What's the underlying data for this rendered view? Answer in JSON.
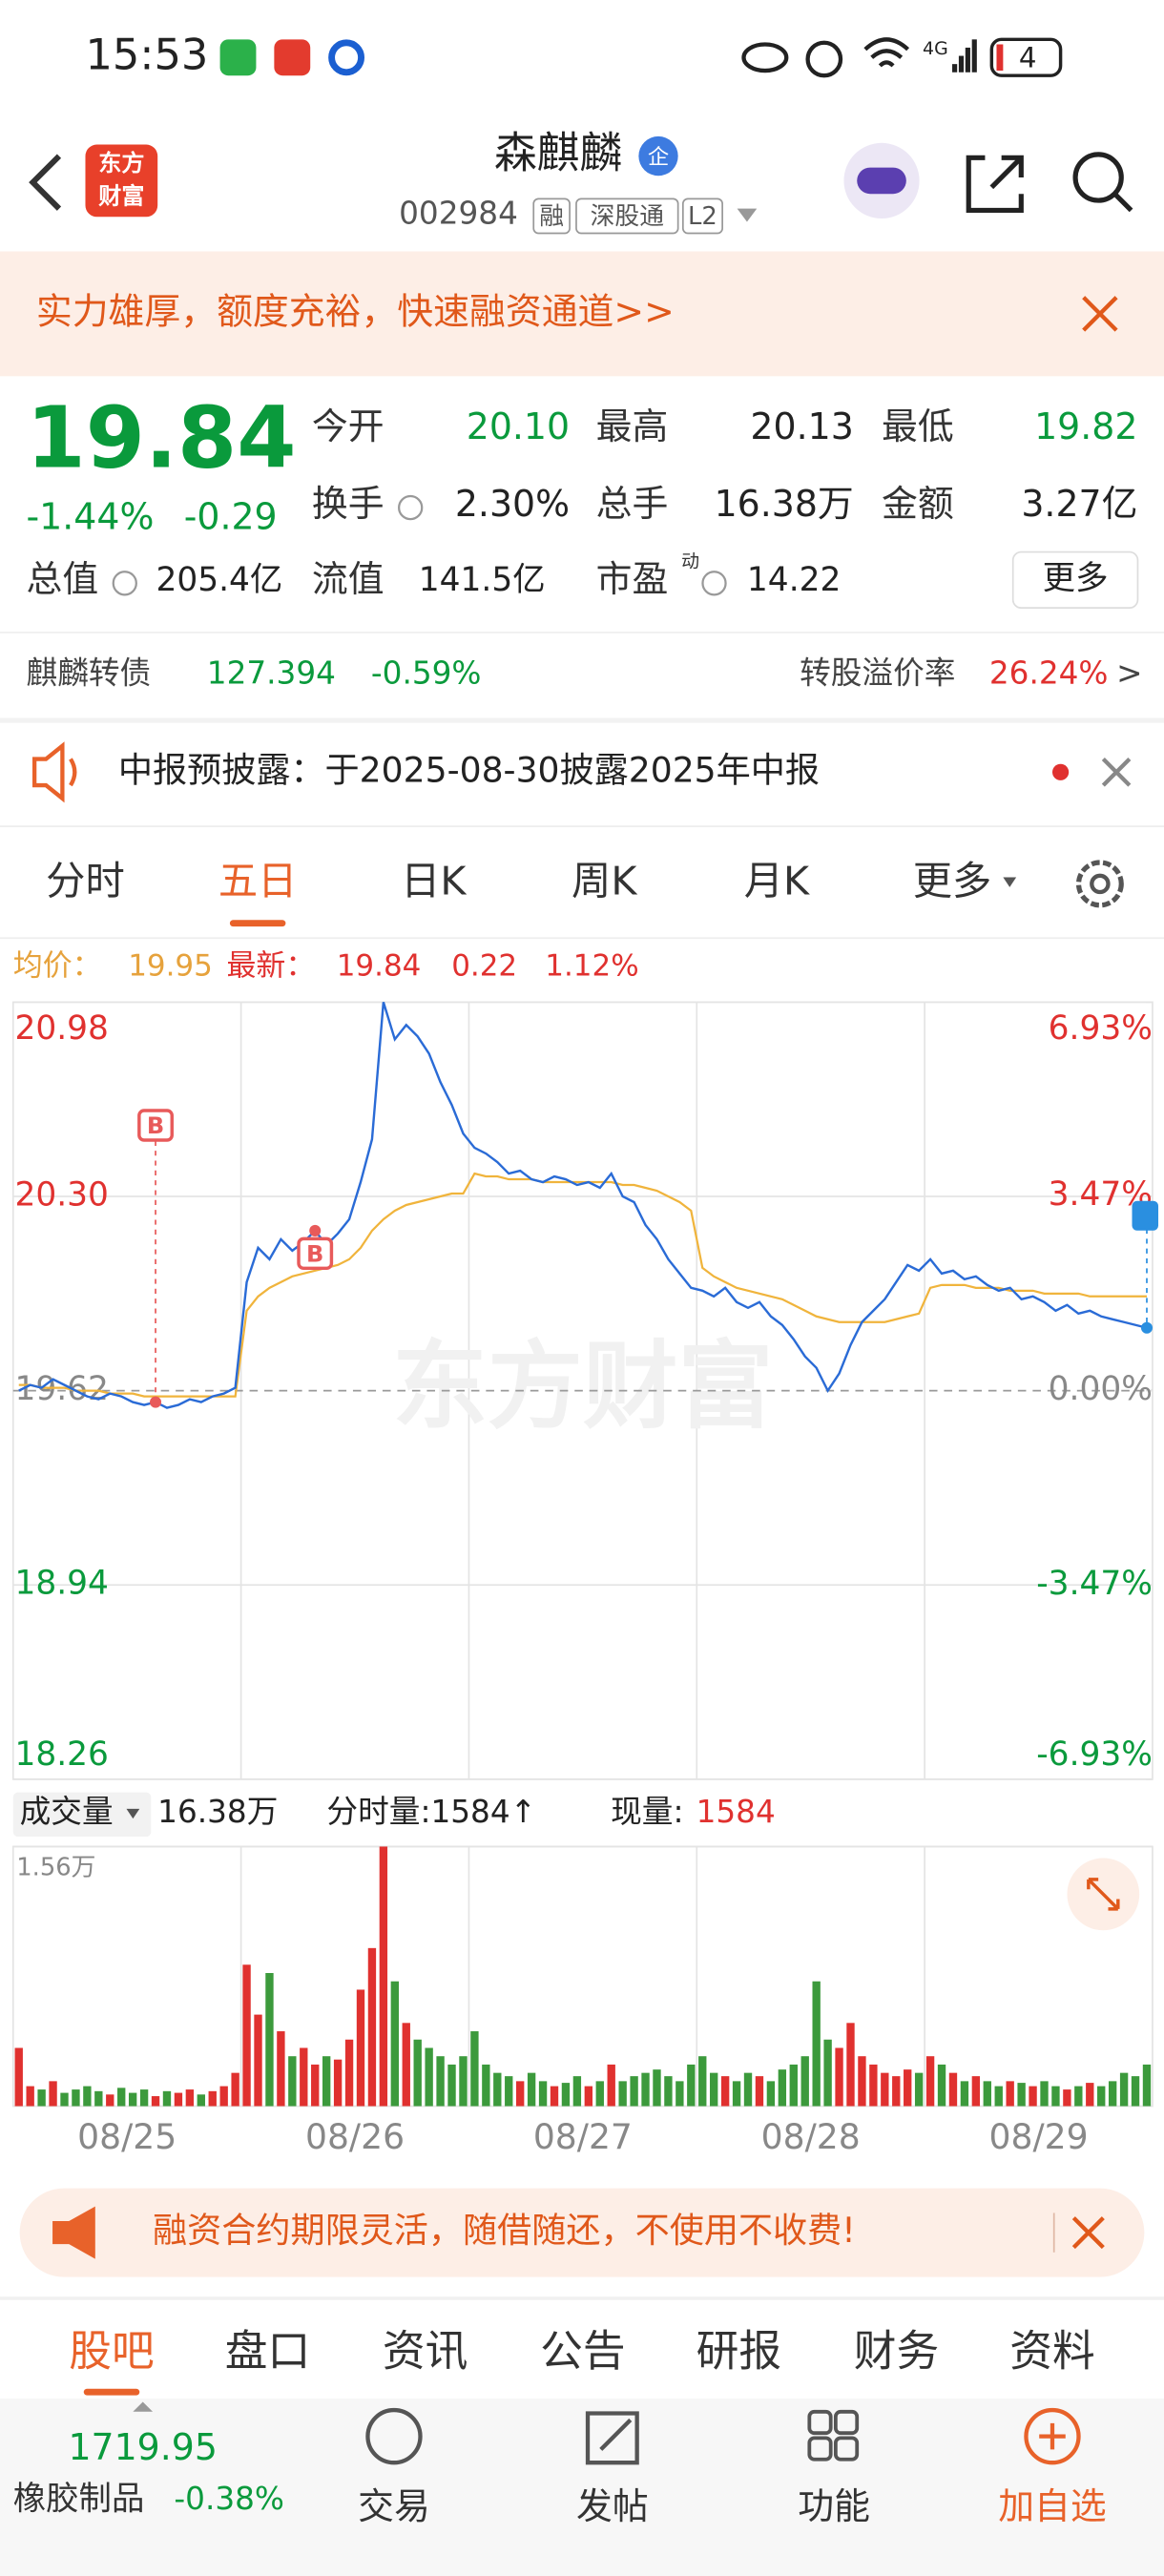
{
  "status_bar": {
    "time": "15:53",
    "network": "4G",
    "battery": "4"
  },
  "header": {
    "logo": [
      "东方",
      "财富"
    ],
    "title": "森麒麟",
    "badge": "企",
    "code": "002984",
    "tags": [
      "融",
      "深股通",
      "L2"
    ]
  },
  "banner": {
    "text": "实力雄厚，额度充裕，快速融资通道>>"
  },
  "quote": {
    "price": "19.84",
    "change_percent": "-1.44%",
    "change": "-0.29",
    "more": "更多",
    "fields": [
      {
        "label": "今开",
        "value": "20.10",
        "color": "#0a9a3c"
      },
      {
        "label": "最高",
        "value": "20.13"
      },
      {
        "label": "最低",
        "value": "19.82",
        "color": "#0a9a3c"
      },
      {
        "label": "换手",
        "value": "2.30%"
      },
      {
        "label": "总手",
        "value": "16.38万"
      },
      {
        "label": "金额",
        "value": "3.27亿"
      },
      {
        "label": "总值",
        "value": "205.4亿"
      },
      {
        "label": "流值",
        "value": "141.5亿"
      },
      {
        "label": "市盈",
        "sup": "动",
        "value": "14.22"
      }
    ]
  },
  "bond": {
    "name": "麒麟转债",
    "price": "127.394",
    "change": "-0.59%",
    "premium_label": "转股溢价率",
    "premium": "26.24%",
    "arrow": ">"
  },
  "notice": {
    "text": "中报预披露：于2025-08-30披露2025年中报"
  },
  "period_tabs": {
    "items": [
      "分时",
      "五日",
      "日K",
      "周K",
      "月K",
      "更多"
    ],
    "active": 1
  },
  "chart_info": {
    "avg_label": "均价：",
    "avg": "19.95",
    "latest_label": "最新：",
    "latest": "19.84",
    "change": "0.22",
    "change_percent": "1.12%"
  },
  "chart_data": [
    {
      "type": "line",
      "ylim": [
        18.26,
        20.98
      ],
      "yticks": [
        20.98,
        {
          "value": 20.3,
          "label": "20.30"
        },
        19.62,
        18.94,
        18.26
      ],
      "y2lim": [
        -6.93,
        6.93
      ],
      "y2ticks": [
        {
          "value": 6.93,
          "label": "6.93%"
        },
        {
          "value": 3.47,
          "label": "3.47%"
        },
        {
          "value": 0,
          "label": "0.00%"
        },
        {
          "value": -3.47,
          "label": "-3.47%"
        },
        {
          "value": -6.93,
          "label": "-6.93%"
        }
      ],
      "up_color": "#e0312f",
      "down_color": "#0a9a3c",
      "flat_color": "#888888",
      "series": [
        {
          "color": "#2a6bd6",
          "values": [
            19.62,
            19.64,
            19.63,
            19.66,
            19.64,
            19.62,
            19.6,
            19.59,
            19.61,
            19.6,
            19.58,
            19.57,
            19.58,
            19.56,
            19.57,
            19.59,
            19.58,
            19.6,
            19.61,
            19.63,
            20.0,
            20.12,
            20.08,
            20.15,
            20.11,
            20.14,
            20.18,
            20.13,
            20.17,
            20.22,
            20.35,
            20.5,
            20.98,
            20.85,
            20.9,
            20.86,
            20.8,
            20.7,
            20.62,
            20.52,
            20.47,
            20.45,
            20.42,
            20.38,
            20.39,
            20.36,
            20.35,
            20.37,
            20.36,
            20.34,
            20.35,
            20.33,
            20.38,
            20.3,
            20.28,
            20.2,
            20.15,
            20.08,
            20.03,
            19.98,
            19.97,
            19.95,
            19.98,
            19.93,
            19.91,
            19.93,
            19.88,
            19.85,
            19.8,
            19.74,
            19.7,
            19.62,
            19.68,
            19.78,
            19.86,
            19.9,
            19.94,
            20.0,
            20.06,
            20.04,
            20.08,
            20.03,
            20.04,
            20.01,
            20.02,
            19.99,
            19.97,
            19.98,
            19.94,
            19.95,
            19.93,
            19.9,
            19.92,
            19.89,
            19.9,
            19.88,
            19.87,
            19.86,
            19.85,
            19.84
          ]
        },
        {
          "color": "#f0b43c",
          "values": [
            19.64,
            19.64,
            19.63,
            19.63,
            19.63,
            19.62,
            19.62,
            19.62,
            19.61,
            19.61,
            19.61,
            19.6,
            19.6,
            19.6,
            19.6,
            19.6,
            19.6,
            19.6,
            19.6,
            19.6,
            19.9,
            19.95,
            19.98,
            20.0,
            20.02,
            20.03,
            20.04,
            20.05,
            20.06,
            20.08,
            20.12,
            20.18,
            20.22,
            20.25,
            20.27,
            20.28,
            20.29,
            20.3,
            20.31,
            20.31,
            20.38,
            20.37,
            20.37,
            20.36,
            20.36,
            20.36,
            20.35,
            20.35,
            20.35,
            20.35,
            20.35,
            20.35,
            20.35,
            20.34,
            20.34,
            20.33,
            20.32,
            20.3,
            20.28,
            20.25,
            20.05,
            20.02,
            20.0,
            19.98,
            19.97,
            19.96,
            19.95,
            19.94,
            19.92,
            19.9,
            19.88,
            19.87,
            19.86,
            19.86,
            19.86,
            19.86,
            19.86,
            19.87,
            19.88,
            19.89,
            19.98,
            19.99,
            19.99,
            19.99,
            19.98,
            19.98,
            19.98,
            19.97,
            19.97,
            19.97,
            19.96,
            19.96,
            19.96,
            19.96,
            19.95,
            19.95,
            19.95,
            19.95,
            19.95,
            19.95
          ]
        }
      ]
    },
    {
      "type": "bar",
      "ylim": [
        0,
        1.56
      ],
      "yticks": [
        {
          "value": 1.56,
          "label": "1.56万"
        }
      ],
      "day_labels": [
        "08/25",
        "08/26",
        "08/27",
        "08/28",
        "08/29"
      ],
      "up_color": "#e0312f",
      "down_color": "#3c9a3c",
      "values": [
        0.35,
        0.12,
        0.1,
        0.15,
        0.08,
        0.1,
        0.12,
        0.09,
        0.07,
        0.11,
        0.08,
        0.1,
        0.06,
        0.09,
        0.08,
        0.1,
        0.07,
        0.09,
        0.12,
        0.2,
        0.85,
        0.55,
        0.8,
        0.45,
        0.3,
        0.35,
        0.25,
        0.3,
        0.28,
        0.4,
        0.7,
        0.95,
        1.56,
        0.75,
        0.5,
        0.4,
        0.35,
        0.3,
        0.25,
        0.3,
        0.45,
        0.25,
        0.2,
        0.18,
        0.15,
        0.2,
        0.15,
        0.12,
        0.14,
        0.18,
        0.12,
        0.15,
        0.25,
        0.15,
        0.18,
        0.2,
        0.22,
        0.18,
        0.15,
        0.25,
        0.3,
        0.2,
        0.18,
        0.15,
        0.2,
        0.18,
        0.15,
        0.22,
        0.25,
        0.3,
        0.75,
        0.4,
        0.35,
        0.5,
        0.3,
        0.25,
        0.2,
        0.18,
        0.22,
        0.2,
        0.3,
        0.25,
        0.2,
        0.15,
        0.18,
        0.15,
        0.12,
        0.15,
        0.14,
        0.12,
        0.15,
        0.12,
        0.1,
        0.12,
        0.14,
        0.12,
        0.15,
        0.2,
        0.18,
        0.25
      ]
    }
  ],
  "volume_info": {
    "label": "成交量",
    "total": "16.38万",
    "tick_volume": "分时量:1584↑",
    "current_label": "现量:",
    "current": "1584"
  },
  "watermark": "东方财富",
  "trade_markers": [
    "B",
    "B"
  ],
  "promo": {
    "text": "融资合约期限灵活，随借随还，不使用不收费!"
  },
  "bottom_tabs": {
    "items": [
      "股吧",
      "盘口",
      "资讯",
      "公告",
      "研报",
      "财务",
      "资料"
    ],
    "active": 0
  },
  "nav": {
    "index_value": "1719.95",
    "index_name": "橡胶制品",
    "index_change": "-0.38%",
    "items": [
      "交易",
      "发帖",
      "功能",
      "加自选"
    ]
  }
}
